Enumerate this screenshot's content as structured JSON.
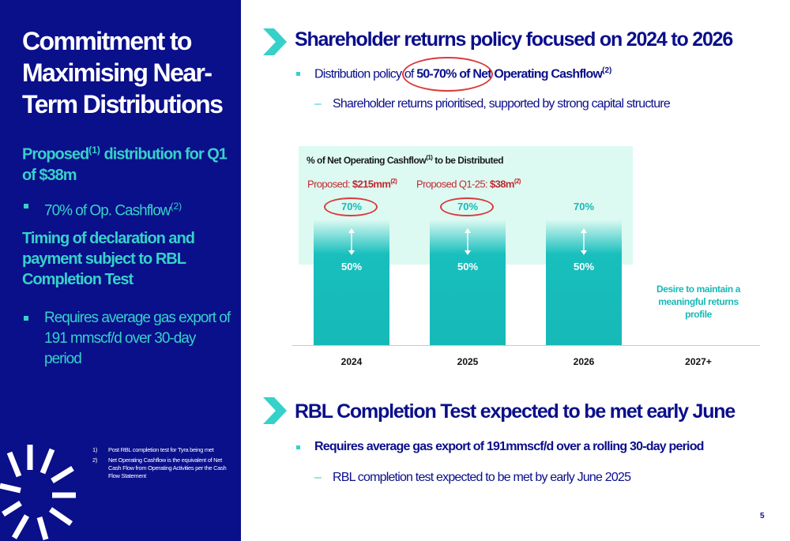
{
  "left": {
    "title": "Commitment to Maximising Near-Term Distributions",
    "sub1_a": "Proposed",
    "sub1_sup": "(1)",
    "sub1_b": " distribution for Q1 of $38m",
    "bullet1_a": "70% of Op. Cashflow",
    "bullet1_sup": "(2)",
    "sub2": "Timing of declaration and payment subject to RBL Completion Test",
    "bullet2": "Requires average gas export of 191 mmscf/d over 30-day period",
    "footnotes": [
      {
        "num": "1)",
        "text": "Post RBL completion test for Tyra being met"
      },
      {
        "num": "2)",
        "text": "Net Operating Cashflow is the equivalent of Net Cash Flow from Operating Activities per the Cash Flow Statement"
      }
    ]
  },
  "section1": {
    "title": "Shareholder returns policy focused on 2024 to 2026",
    "bullet_a": "Distribution policy of ",
    "bullet_bold": "50-70% of Net Operating Cashflow",
    "bullet_sup": "(2)",
    "sub": "Shareholder returns prioritised, supported by strong capital structure"
  },
  "chart_data": {
    "type": "bar",
    "title_a": "% of Net Operating Cashflow",
    "title_sup": "(1)",
    "title_b": " to be Distributed",
    "categories": [
      "2024",
      "2025",
      "2026",
      "2027+"
    ],
    "series": [
      {
        "values": [
          70,
          70,
          70,
          null
        ],
        "labels": [
          "70%",
          "70%",
          "70%",
          ""
        ]
      },
      {
        "values": [
          50,
          50,
          50,
          null
        ],
        "labels": [
          "50%",
          "50%",
          "50%",
          ""
        ]
      }
    ],
    "annotations": {
      "proposed_2024_a": "Proposed: ",
      "proposed_2024_val": "$215mm",
      "proposed_2024_sup": "(2)",
      "proposed_2025_a": "Proposed Q1-25: ",
      "proposed_2025_val": "$38m",
      "proposed_2025_sup": "(2)",
      "desire": "Desire to maintain a meaningful returns profile"
    },
    "colors": {
      "bar": "#16b9b7",
      "range_band": "#dcfaf2",
      "highlight": "#c3282e"
    }
  },
  "section2": {
    "title": "RBL Completion Test expected to be met early June",
    "bullet": "Requires average gas export of 191mmscf/d over a rolling 30-day period",
    "sub": "RBL completion test expected to be met by early June 2025"
  },
  "page_number": "5",
  "colors": {
    "navy": "#0a0f8a",
    "teal": "#36d1c8",
    "red": "#d93b3b"
  }
}
